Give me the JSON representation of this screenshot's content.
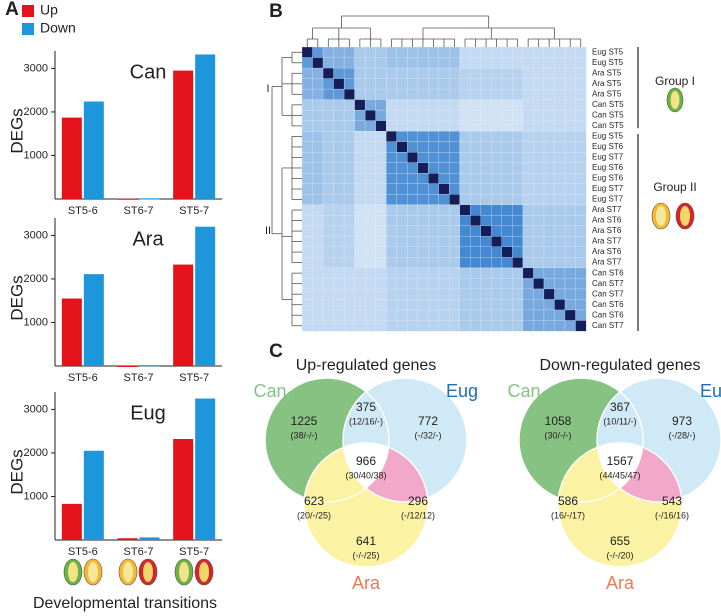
{
  "panel_labels": [
    "A",
    "B",
    "C"
  ],
  "chart_data": [
    {
      "type": "bar",
      "title": "Can",
      "ylabel": "DEGs",
      "legend": true,
      "categories": [
        "ST5-6",
        "ST6-7",
        "ST5-7"
      ],
      "series": [
        {
          "name": "Up",
          "color": "#e3121b",
          "values": [
            1870,
            10,
            2950
          ]
        },
        {
          "name": "Down",
          "color": "#1e96dc",
          "values": [
            2240,
            15,
            3320
          ]
        }
      ],
      "ylim": [
        0,
        3400
      ],
      "yticks": [
        1000,
        2000,
        3000
      ]
    },
    {
      "type": "bar",
      "title": "Ara",
      "ylabel": "DEGs",
      "categories": [
        "ST5-6",
        "ST6-7",
        "ST5-7"
      ],
      "series": [
        {
          "name": "Up",
          "color": "#e3121b",
          "values": [
            1550,
            5,
            2330
          ]
        },
        {
          "name": "Down",
          "color": "#1e96dc",
          "values": [
            2110,
            20,
            3200
          ]
        }
      ],
      "ylim": [
        0,
        3400
      ],
      "yticks": [
        1000,
        2000,
        3000
      ]
    },
    {
      "type": "bar",
      "title": "Eug",
      "ylabel": "DEGs",
      "xlabel": "Developmental transitions",
      "categories": [
        "ST5-6",
        "ST6-7",
        "ST5-7"
      ],
      "series": [
        {
          "name": "Up",
          "color": "#e3121b",
          "values": [
            830,
            40,
            2320
          ]
        },
        {
          "name": "Down",
          "color": "#1e96dc",
          "values": [
            2050,
            60,
            3250
          ]
        }
      ],
      "ylim": [
        0,
        3400
      ],
      "yticks": [
        1000,
        2000,
        3000
      ]
    },
    {
      "type": "heatmap",
      "colormap": [
        "#f7fbff",
        "#2a78cc",
        "#141f5a"
      ],
      "row_labels": [
        "Eug ST5",
        "Eug ST5",
        "Ara ST5",
        "Ara ST5",
        "Ara ST5",
        "Can ST5",
        "Can ST5",
        "Can ST5",
        "Eug ST5",
        "Eug ST6",
        "Eug ST7",
        "Eug ST6",
        "Eug ST6",
        "Eug ST7",
        "Eug ST7",
        "Ara ST7",
        "Ara ST6",
        "Ara ST6",
        "Ara ST7",
        "Ara ST6",
        "Ara ST7",
        "Can ST6",
        "Can ST7",
        "Can ST7",
        "Can ST6",
        "Can ST6",
        "Can ST7"
      ],
      "clusters": [
        "I",
        "II"
      ],
      "groups": [
        "Group I",
        "Group II"
      ],
      "matrix": [
        [
          1,
          0.6,
          0.45,
          0.45,
          0.45,
          0.3,
          0.3,
          0.3,
          0.35,
          0.35,
          0.35,
          0.35,
          0.35,
          0.35,
          0.35,
          0.2,
          0.2,
          0.2,
          0.2,
          0.2,
          0.2,
          0.2,
          0.2,
          0.2,
          0.2,
          0.2,
          0.2
        ],
        [
          0.6,
          1,
          0.45,
          0.45,
          0.45,
          0.3,
          0.3,
          0.3,
          0.35,
          0.35,
          0.35,
          0.35,
          0.35,
          0.35,
          0.35,
          0.2,
          0.2,
          0.2,
          0.2,
          0.2,
          0.2,
          0.2,
          0.2,
          0.2,
          0.2,
          0.2,
          0.2
        ],
        [
          0.45,
          0.45,
          1,
          0.6,
          0.6,
          0.3,
          0.3,
          0.3,
          0.3,
          0.3,
          0.3,
          0.3,
          0.3,
          0.3,
          0.3,
          0.25,
          0.25,
          0.25,
          0.25,
          0.25,
          0.25,
          0.2,
          0.2,
          0.2,
          0.2,
          0.2,
          0.2
        ],
        [
          0.45,
          0.45,
          0.6,
          1,
          0.6,
          0.3,
          0.3,
          0.3,
          0.3,
          0.3,
          0.3,
          0.3,
          0.3,
          0.3,
          0.3,
          0.25,
          0.25,
          0.25,
          0.25,
          0.25,
          0.25,
          0.2,
          0.2,
          0.2,
          0.2,
          0.2,
          0.2
        ],
        [
          0.45,
          0.45,
          0.6,
          0.6,
          1,
          0.3,
          0.3,
          0.3,
          0.3,
          0.3,
          0.3,
          0.3,
          0.3,
          0.3,
          0.3,
          0.25,
          0.25,
          0.25,
          0.25,
          0.25,
          0.25,
          0.2,
          0.2,
          0.2,
          0.2,
          0.2,
          0.2
        ],
        [
          0.3,
          0.3,
          0.3,
          0.3,
          0.3,
          1,
          0.5,
          0.5,
          0.2,
          0.2,
          0.2,
          0.2,
          0.2,
          0.2,
          0.2,
          0.15,
          0.15,
          0.15,
          0.15,
          0.15,
          0.15,
          0.2,
          0.2,
          0.2,
          0.2,
          0.2,
          0.2
        ],
        [
          0.3,
          0.3,
          0.3,
          0.3,
          0.3,
          0.5,
          1,
          0.5,
          0.2,
          0.2,
          0.2,
          0.2,
          0.2,
          0.2,
          0.2,
          0.15,
          0.15,
          0.15,
          0.15,
          0.15,
          0.15,
          0.2,
          0.2,
          0.2,
          0.2,
          0.2,
          0.2
        ],
        [
          0.3,
          0.3,
          0.3,
          0.3,
          0.3,
          0.5,
          0.5,
          1,
          0.2,
          0.2,
          0.2,
          0.2,
          0.2,
          0.2,
          0.2,
          0.15,
          0.15,
          0.15,
          0.15,
          0.15,
          0.15,
          0.2,
          0.2,
          0.2,
          0.2,
          0.2,
          0.2
        ],
        [
          0.35,
          0.35,
          0.3,
          0.3,
          0.3,
          0.2,
          0.2,
          0.2,
          1,
          0.65,
          0.65,
          0.65,
          0.65,
          0.65,
          0.65,
          0.3,
          0.3,
          0.3,
          0.3,
          0.3,
          0.3,
          0.25,
          0.25,
          0.25,
          0.25,
          0.25,
          0.25
        ],
        [
          0.35,
          0.35,
          0.3,
          0.3,
          0.3,
          0.2,
          0.2,
          0.2,
          0.65,
          1,
          0.65,
          0.65,
          0.65,
          0.65,
          0.65,
          0.3,
          0.3,
          0.3,
          0.3,
          0.3,
          0.3,
          0.25,
          0.25,
          0.25,
          0.25,
          0.25,
          0.25
        ],
        [
          0.35,
          0.35,
          0.3,
          0.3,
          0.3,
          0.2,
          0.2,
          0.2,
          0.65,
          0.65,
          1,
          0.65,
          0.65,
          0.65,
          0.65,
          0.3,
          0.3,
          0.3,
          0.3,
          0.3,
          0.3,
          0.25,
          0.25,
          0.25,
          0.25,
          0.25,
          0.25
        ],
        [
          0.35,
          0.35,
          0.3,
          0.3,
          0.3,
          0.2,
          0.2,
          0.2,
          0.65,
          0.65,
          0.65,
          1,
          0.65,
          0.65,
          0.65,
          0.3,
          0.3,
          0.3,
          0.3,
          0.3,
          0.3,
          0.25,
          0.25,
          0.25,
          0.25,
          0.25,
          0.25
        ],
        [
          0.35,
          0.35,
          0.3,
          0.3,
          0.3,
          0.2,
          0.2,
          0.2,
          0.65,
          0.65,
          0.65,
          0.65,
          1,
          0.65,
          0.65,
          0.3,
          0.3,
          0.3,
          0.3,
          0.3,
          0.3,
          0.25,
          0.25,
          0.25,
          0.25,
          0.25,
          0.25
        ],
        [
          0.35,
          0.35,
          0.3,
          0.3,
          0.3,
          0.2,
          0.2,
          0.2,
          0.65,
          0.65,
          0.65,
          0.65,
          0.65,
          1,
          0.65,
          0.3,
          0.3,
          0.3,
          0.3,
          0.3,
          0.3,
          0.25,
          0.25,
          0.25,
          0.25,
          0.25,
          0.25
        ],
        [
          0.35,
          0.35,
          0.3,
          0.3,
          0.3,
          0.2,
          0.2,
          0.2,
          0.65,
          0.65,
          0.65,
          0.65,
          0.65,
          0.65,
          1,
          0.3,
          0.3,
          0.3,
          0.3,
          0.3,
          0.3,
          0.25,
          0.25,
          0.25,
          0.25,
          0.25,
          0.25
        ],
        [
          0.2,
          0.2,
          0.25,
          0.25,
          0.25,
          0.15,
          0.15,
          0.15,
          0.3,
          0.3,
          0.3,
          0.3,
          0.3,
          0.3,
          0.3,
          1,
          0.7,
          0.7,
          0.7,
          0.7,
          0.7,
          0.3,
          0.3,
          0.3,
          0.3,
          0.3,
          0.3
        ],
        [
          0.2,
          0.2,
          0.25,
          0.25,
          0.25,
          0.15,
          0.15,
          0.15,
          0.3,
          0.3,
          0.3,
          0.3,
          0.3,
          0.3,
          0.3,
          0.7,
          1,
          0.7,
          0.7,
          0.7,
          0.7,
          0.3,
          0.3,
          0.3,
          0.3,
          0.3,
          0.3
        ],
        [
          0.2,
          0.2,
          0.25,
          0.25,
          0.25,
          0.15,
          0.15,
          0.15,
          0.3,
          0.3,
          0.3,
          0.3,
          0.3,
          0.3,
          0.3,
          0.7,
          0.7,
          1,
          0.7,
          0.7,
          0.7,
          0.3,
          0.3,
          0.3,
          0.3,
          0.3,
          0.3
        ],
        [
          0.2,
          0.2,
          0.25,
          0.25,
          0.25,
          0.15,
          0.15,
          0.15,
          0.3,
          0.3,
          0.3,
          0.3,
          0.3,
          0.3,
          0.3,
          0.7,
          0.7,
          0.7,
          1,
          0.7,
          0.7,
          0.3,
          0.3,
          0.3,
          0.3,
          0.3,
          0.3
        ],
        [
          0.2,
          0.2,
          0.25,
          0.25,
          0.25,
          0.15,
          0.15,
          0.15,
          0.3,
          0.3,
          0.3,
          0.3,
          0.3,
          0.3,
          0.3,
          0.7,
          0.7,
          0.7,
          0.7,
          1,
          0.7,
          0.3,
          0.3,
          0.3,
          0.3,
          0.3,
          0.3
        ],
        [
          0.2,
          0.2,
          0.25,
          0.25,
          0.25,
          0.15,
          0.15,
          0.15,
          0.3,
          0.3,
          0.3,
          0.3,
          0.3,
          0.3,
          0.3,
          0.7,
          0.7,
          0.7,
          0.7,
          0.7,
          1,
          0.3,
          0.3,
          0.3,
          0.3,
          0.3,
          0.3
        ],
        [
          0.2,
          0.2,
          0.2,
          0.2,
          0.2,
          0.2,
          0.2,
          0.2,
          0.25,
          0.25,
          0.25,
          0.25,
          0.25,
          0.25,
          0.25,
          0.3,
          0.3,
          0.3,
          0.3,
          0.3,
          0.3,
          1,
          0.5,
          0.5,
          0.5,
          0.5,
          0.5
        ],
        [
          0.2,
          0.2,
          0.2,
          0.2,
          0.2,
          0.2,
          0.2,
          0.2,
          0.25,
          0.25,
          0.25,
          0.25,
          0.25,
          0.25,
          0.25,
          0.3,
          0.3,
          0.3,
          0.3,
          0.3,
          0.3,
          0.5,
          1,
          0.5,
          0.5,
          0.5,
          0.5
        ],
        [
          0.2,
          0.2,
          0.2,
          0.2,
          0.2,
          0.2,
          0.2,
          0.2,
          0.25,
          0.25,
          0.25,
          0.25,
          0.25,
          0.25,
          0.25,
          0.3,
          0.3,
          0.3,
          0.3,
          0.3,
          0.3,
          0.5,
          0.5,
          1,
          0.5,
          0.5,
          0.5
        ],
        [
          0.2,
          0.2,
          0.2,
          0.2,
          0.2,
          0.2,
          0.2,
          0.2,
          0.25,
          0.25,
          0.25,
          0.25,
          0.25,
          0.25,
          0.25,
          0.3,
          0.3,
          0.3,
          0.3,
          0.3,
          0.3,
          0.5,
          0.5,
          0.5,
          1,
          0.5,
          0.5
        ],
        [
          0.2,
          0.2,
          0.2,
          0.2,
          0.2,
          0.2,
          0.2,
          0.2,
          0.25,
          0.25,
          0.25,
          0.25,
          0.25,
          0.25,
          0.25,
          0.3,
          0.3,
          0.3,
          0.3,
          0.3,
          0.3,
          0.5,
          0.5,
          0.5,
          0.5,
          1,
          0.5
        ],
        [
          0.2,
          0.2,
          0.2,
          0.2,
          0.2,
          0.2,
          0.2,
          0.2,
          0.25,
          0.25,
          0.25,
          0.25,
          0.25,
          0.25,
          0.25,
          0.3,
          0.3,
          0.3,
          0.3,
          0.3,
          0.3,
          0.5,
          0.5,
          0.5,
          0.5,
          0.5,
          1
        ]
      ]
    },
    {
      "type": "venn",
      "title": "Up-regulated genes",
      "sets": [
        {
          "name": "Can",
          "color": "#86c383"
        },
        {
          "name": "Eug",
          "color": "#27aae1"
        },
        {
          "name": "Ara",
          "color": "#ec7b55"
        }
      ],
      "overlap_colors": [
        "#cfe9f7",
        "#fcf2a3",
        "#f1a8c9",
        "#ffffff"
      ],
      "regions": [
        {
          "value": 1225,
          "detail": "(38/-/-)"
        },
        {
          "value": 772,
          "detail": "(-/32/-)"
        },
        {
          "value": 641,
          "detail": "(-/-/25)"
        },
        {
          "value": 375,
          "detail": "(12/16/-)"
        },
        {
          "value": 623,
          "detail": "(20/-/25)"
        },
        {
          "value": 296,
          "detail": "(-/12/12)"
        },
        {
          "value": 966,
          "detail": "(30/40/38)"
        }
      ]
    },
    {
      "type": "venn",
      "title": "Down-regulated genes",
      "sets": [
        {
          "name": "Can",
          "color": "#86c383"
        },
        {
          "name": "Eug",
          "color": "#27aae1"
        },
        {
          "name": "Ara",
          "color": "#ec7b55"
        }
      ],
      "overlap_colors": [
        "#cfe9f7",
        "#fcf2a3",
        "#f1a8c9",
        "#ffffff"
      ],
      "regions": [
        {
          "value": 1058,
          "detail": "(30/-/-)"
        },
        {
          "value": 973,
          "detail": "(-/28/-)"
        },
        {
          "value": 655,
          "detail": "(-/-/20)"
        },
        {
          "value": 367,
          "detail": "(10/11/-)"
        },
        {
          "value": 586,
          "detail": "(16/-/17)"
        },
        {
          "value": 543,
          "detail": "(-/16/16)"
        },
        {
          "value": 1567,
          "detail": "(44/45/47)"
        }
      ]
    }
  ]
}
